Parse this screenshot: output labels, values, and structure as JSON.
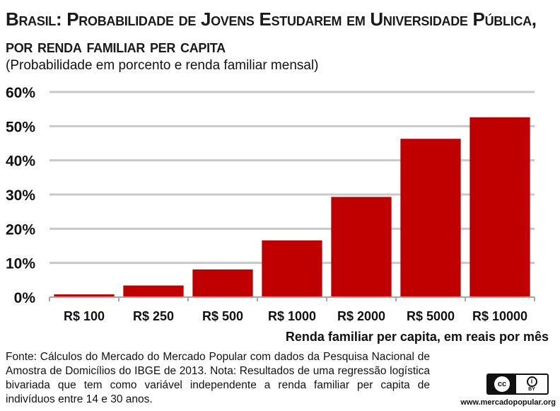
{
  "title": "Brasil: Probabilidade de Jovens Estudarem em Universidade Pública, por renda familiar per capita",
  "subtitle": "(Probabilidade em porcento e renda familiar mensal)",
  "source": "Fonte: Cálculos do Mercado do Mercado Popular com dados da Pesquisa Nacional de Amostra de Domicílios do IBGE de 2013. Nota: Resultados de uma regressão logística bivariada que tem como variável independente a renda familiar per capita de indivíduos entre 14 e 30 anos.",
  "license": {
    "cc_label": "cc",
    "by_label": "BY",
    "icon": "creative-commons-by-icon"
  },
  "website": "www.mercadopopular.org",
  "colors": {
    "bar": "#c00000",
    "grid": "#c8c8c8",
    "axis": "#a6a6a6"
  },
  "chart_data": {
    "type": "bar",
    "title": "Brasil: Probabilidade de Jovens Estudarem em Universidade Pública, por renda familiar per capita",
    "subtitle": "(Probabilidade em porcento e renda familiar mensal)",
    "xlabel": "Renda familiar per capita, em reais por mês",
    "ylabel": "",
    "categories": [
      "R$ 100",
      "R$ 250",
      "R$ 500",
      "R$ 1000",
      "R$ 2000",
      "R$ 5000",
      "R$ 10000"
    ],
    "values": [
      0.8,
      3.4,
      8.1,
      16.6,
      29.3,
      46.3,
      52.6
    ],
    "ylim": [
      0,
      60
    ],
    "yticks": [
      0,
      10,
      20,
      30,
      40,
      50,
      60
    ],
    "ytick_labels": [
      "0%",
      "10%",
      "20%",
      "30%",
      "40%",
      "50%",
      "60%"
    ],
    "grid": true,
    "legend": "none"
  }
}
